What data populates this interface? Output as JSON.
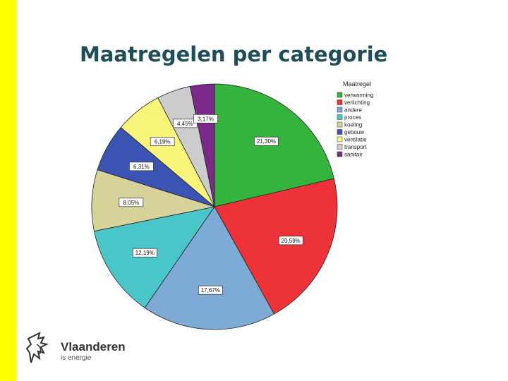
{
  "slide": {
    "title": "Maatregelen per categorie",
    "accent_color": "#ffff00"
  },
  "branding": {
    "logo_name": "Vlaanderen",
    "logo_tagline": "is energie",
    "logo_icon": "flemish-lion-icon"
  },
  "chart_data": {
    "type": "pie",
    "legend_title": "Maatregel",
    "legend_position": "top-right",
    "slices": [
      {
        "name": "verwarming",
        "value": 21.3,
        "label": "21,30%",
        "color": "#34b43c"
      },
      {
        "name": "verlichting",
        "value": 20.59,
        "label": "20,59%",
        "color": "#ee3338"
      },
      {
        "name": "andere",
        "value": 17.67,
        "label": "17,67%",
        "color": "#7eaad6"
      },
      {
        "name": "proces",
        "value": 12.19,
        "label": "12,19%",
        "color": "#4ac5c8"
      },
      {
        "name": "koeling",
        "value": 8.05,
        "label": "8,05%",
        "color": "#d6d29a"
      },
      {
        "name": "gebouw",
        "value": 6.31,
        "label": "6,31%",
        "color": "#3b53b2"
      },
      {
        "name": "ventilatie",
        "value": 6.19,
        "label": "6,19%",
        "color": "#f8f57a"
      },
      {
        "name": "transport",
        "value": 4.45,
        "label": "4,45%",
        "color": "#cccccc"
      },
      {
        "name": "sanitair",
        "value": 3.17,
        "label": "3,17%",
        "color": "#7b2a8a"
      }
    ]
  }
}
